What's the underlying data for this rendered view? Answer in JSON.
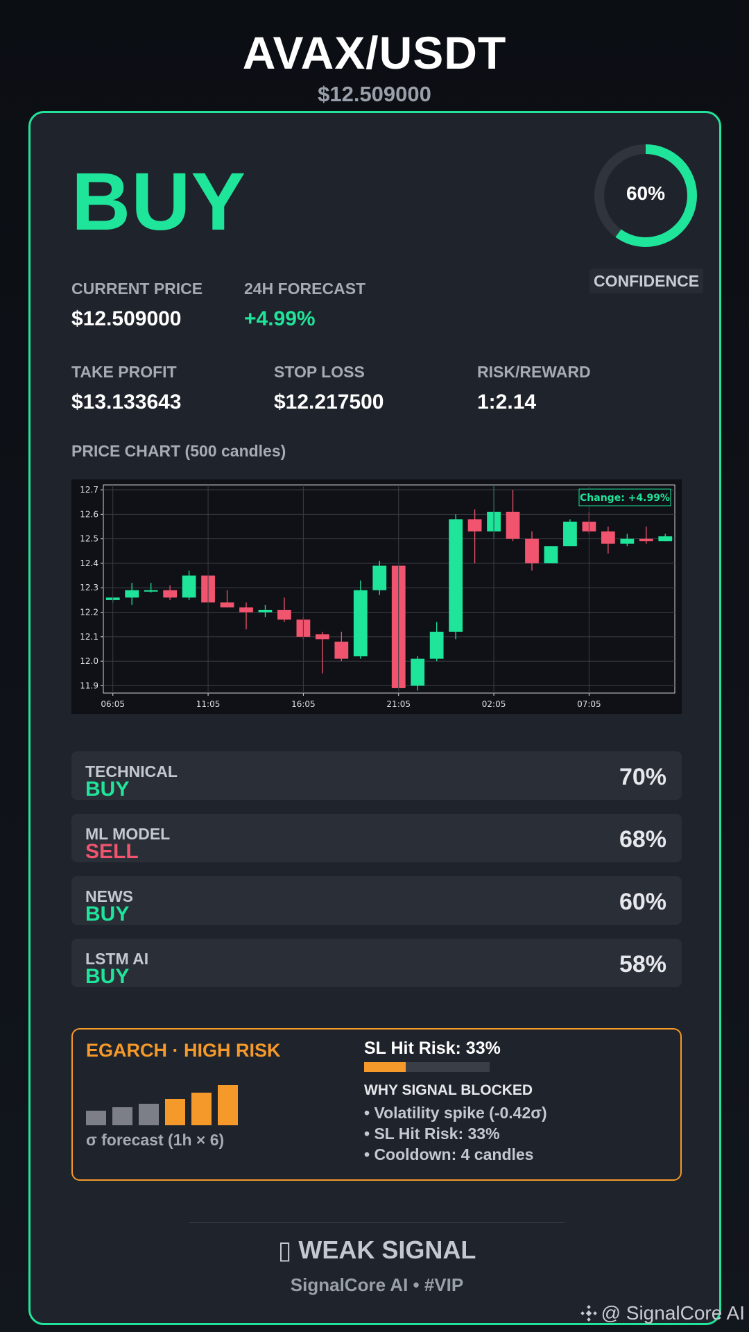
{
  "header": {
    "pair": "AVAX/USDT",
    "price": "$12.509000"
  },
  "signal": {
    "action": "BUY",
    "confidence_value": 60,
    "confidence_text": "60%",
    "confidence_label": "CONFIDENCE"
  },
  "stats": {
    "current_price_label": "CURRENT PRICE",
    "current_price": "$12.509000",
    "forecast_label": "24H FORECAST",
    "forecast": "+4.99%",
    "take_profit_label": "TAKE PROFIT",
    "take_profit": "$13.133643",
    "stop_loss_label": "STOP LOSS",
    "stop_loss": "$12.217500",
    "rr_label": "RISK/REWARD",
    "rr": "1:2.14"
  },
  "chart_section_label": "PRICE CHART (500 candles)",
  "chart_data": {
    "type": "candlestick",
    "annotation": "Change: +4.99%",
    "x_tick_labels": [
      "06:05",
      "11:05",
      "16:05",
      "21:05",
      "02:05",
      "07:05"
    ],
    "y_tick_labels": [
      "12.7",
      "12.6",
      "12.5",
      "12.4",
      "12.3",
      "12.2",
      "12.1",
      "12.0",
      "11.9"
    ],
    "ylim": [
      11.87,
      12.72
    ],
    "grid": true,
    "candles": [
      {
        "o": 12.25,
        "h": 12.26,
        "l": 12.24,
        "c": 12.26
      },
      {
        "o": 12.26,
        "h": 12.32,
        "l": 12.23,
        "c": 12.29
      },
      {
        "o": 12.29,
        "h": 12.32,
        "l": 12.28,
        "c": 12.29
      },
      {
        "o": 12.29,
        "h": 12.31,
        "l": 12.25,
        "c": 12.26
      },
      {
        "o": 12.26,
        "h": 12.37,
        "l": 12.25,
        "c": 12.35
      },
      {
        "o": 12.35,
        "h": 12.35,
        "l": 12.24,
        "c": 12.24
      },
      {
        "o": 12.24,
        "h": 12.29,
        "l": 12.22,
        "c": 12.22
      },
      {
        "o": 12.22,
        "h": 12.24,
        "l": 12.13,
        "c": 12.2
      },
      {
        "o": 12.2,
        "h": 12.23,
        "l": 12.18,
        "c": 12.21
      },
      {
        "o": 12.21,
        "h": 12.26,
        "l": 12.16,
        "c": 12.17
      },
      {
        "o": 12.17,
        "h": 12.18,
        "l": 12.09,
        "c": 12.1
      },
      {
        "o": 12.11,
        "h": 12.12,
        "l": 11.95,
        "c": 12.09
      },
      {
        "o": 12.08,
        "h": 12.12,
        "l": 12.0,
        "c": 12.01
      },
      {
        "o": 12.02,
        "h": 12.33,
        "l": 12.01,
        "c": 12.29
      },
      {
        "o": 12.29,
        "h": 12.41,
        "l": 12.27,
        "c": 12.39
      },
      {
        "o": 12.39,
        "h": 12.39,
        "l": 11.89,
        "c": 11.89
      },
      {
        "o": 11.9,
        "h": 12.02,
        "l": 11.88,
        "c": 12.01
      },
      {
        "o": 12.01,
        "h": 12.16,
        "l": 12.0,
        "c": 12.12
      },
      {
        "o": 12.12,
        "h": 12.6,
        "l": 12.09,
        "c": 12.58
      },
      {
        "o": 12.58,
        "h": 12.62,
        "l": 12.4,
        "c": 12.53
      },
      {
        "o": 12.53,
        "h": 12.72,
        "l": 12.5,
        "c": 12.61
      },
      {
        "o": 12.61,
        "h": 12.7,
        "l": 12.49,
        "c": 12.5
      },
      {
        "o": 12.5,
        "h": 12.53,
        "l": 12.37,
        "c": 12.4
      },
      {
        "o": 12.4,
        "h": 12.47,
        "l": 12.4,
        "c": 12.47
      },
      {
        "o": 12.47,
        "h": 12.58,
        "l": 12.47,
        "c": 12.57
      },
      {
        "o": 12.57,
        "h": 12.61,
        "l": 12.52,
        "c": 12.53
      },
      {
        "o": 12.53,
        "h": 12.55,
        "l": 12.44,
        "c": 12.48
      },
      {
        "o": 12.48,
        "h": 12.52,
        "l": 12.47,
        "c": 12.5
      },
      {
        "o": 12.5,
        "h": 12.55,
        "l": 12.48,
        "c": 12.49
      },
      {
        "o": 12.49,
        "h": 12.52,
        "l": 12.49,
        "c": 12.51
      }
    ]
  },
  "indicators": [
    {
      "name": "TECHNICAL",
      "signal": "BUY",
      "pct": "70%",
      "sentiment": "bull"
    },
    {
      "name": "ML MODEL",
      "signal": "SELL",
      "pct": "68%",
      "sentiment": "bear"
    },
    {
      "name": "NEWS",
      "signal": "BUY",
      "pct": "60%",
      "sentiment": "bull"
    },
    {
      "name": "LSTM AI",
      "signal": "BUY",
      "pct": "58%",
      "sentiment": "bull"
    }
  ],
  "risk": {
    "title": "EGARCH · HIGH RISK",
    "sigma_bars": [
      0.36,
      0.45,
      0.54,
      0.66,
      0.81,
      1.0
    ],
    "sigma_caption": "σ forecast (1h × 6)",
    "sl_hit_title": "SL Hit Risk: 33%",
    "sl_hit_value": 0.33,
    "why_title": "WHY SIGNAL BLOCKED",
    "reasons": [
      "• Volatility spike (-0.42σ)",
      "• SL Hit Risk: 33%",
      "• Cooldown: 4 candles"
    ]
  },
  "footer": {
    "verdict": "▯ WEAK SIGNAL",
    "brand": "SignalCore AI • #VIP",
    "watermark": "@ SignalCore AI"
  },
  "colors": {
    "accent": "#1fe59b",
    "bear": "#f0546e",
    "warning": "#f59a2a",
    "muted_bar": "#7c7f88"
  },
  "icons": {
    "watermark_logo": "diamond-logo-icon"
  }
}
